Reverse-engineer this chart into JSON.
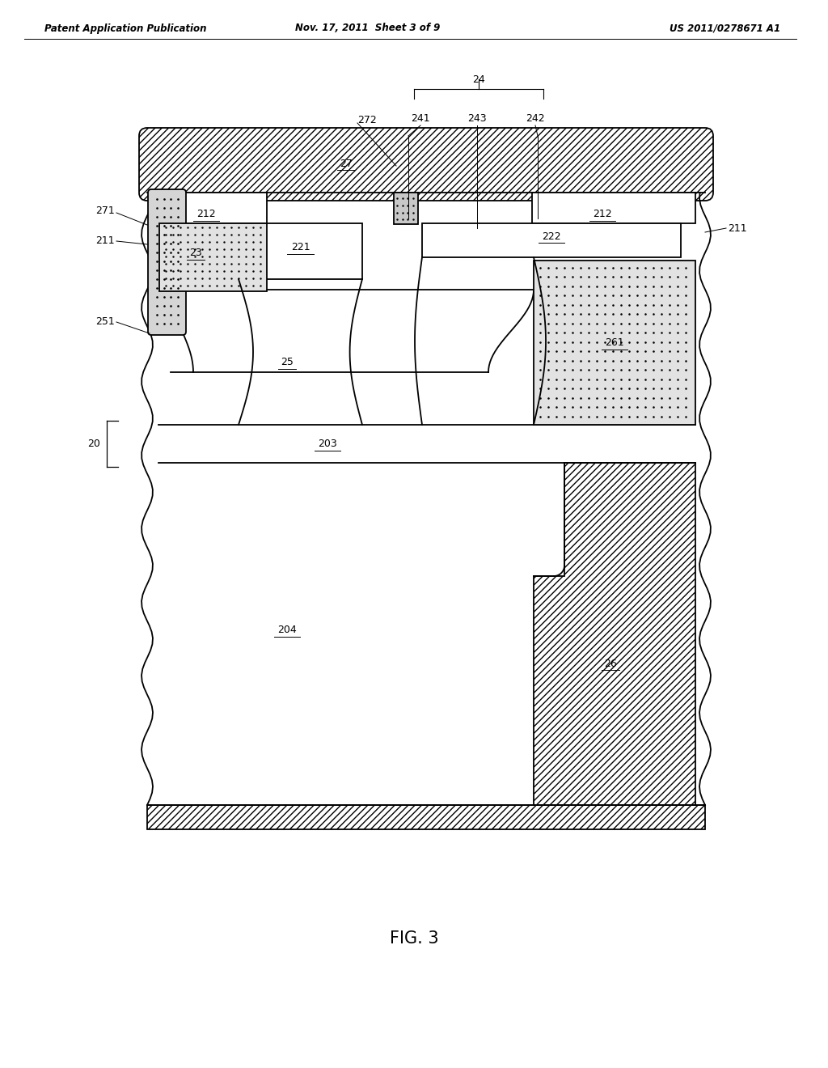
{
  "header_left": "Patent Application Publication",
  "header_center": "Nov. 17, 2011  Sheet 3 of 9",
  "header_right": "US 2011/0278671 A1",
  "caption": "FIG. 3",
  "bg_color": "#ffffff",
  "lw": 1.3
}
